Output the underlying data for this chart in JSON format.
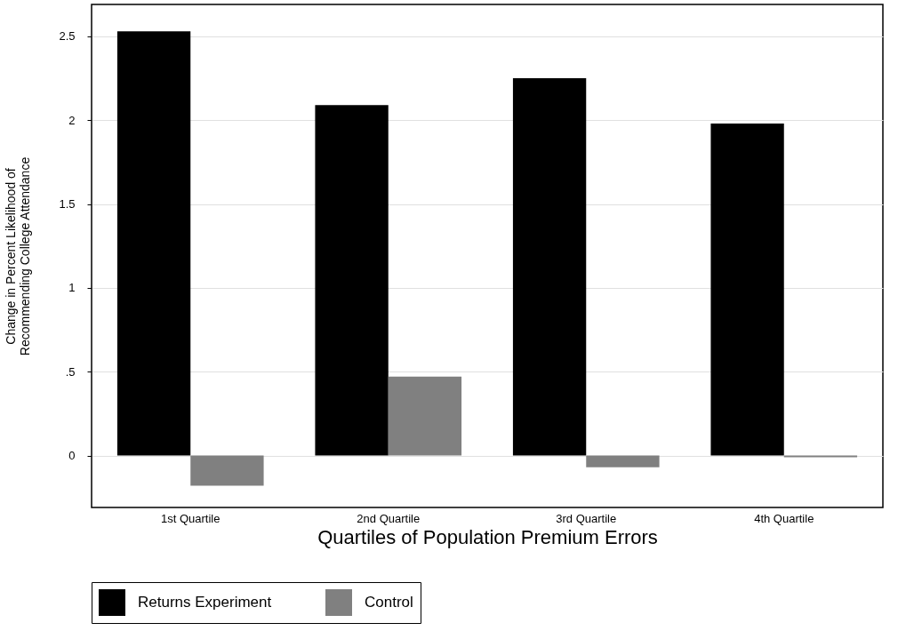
{
  "chart_data": {
    "type": "bar",
    "xlabel": "Quartiles of Population Premium Errors",
    "ylabel": "Change in Percent Likelihood of\nRecommending College Attendance",
    "categories": [
      "1st Quartile",
      "2nd Quartile",
      "3rd Quartile",
      "4th Quartile"
    ],
    "series": [
      {
        "name": "Returns Experiment",
        "color": "#000000",
        "values": [
          2.53,
          2.09,
          2.25,
          1.98
        ]
      },
      {
        "name": "Control",
        "color": "#808080",
        "values": [
          -0.18,
          0.47,
          -0.07,
          -0.01
        ]
      }
    ],
    "ylim": [
      -0.31,
      2.69
    ],
    "yticks": [
      0,
      {
        "value": 0.5,
        "label": ".5"
      },
      1,
      1.5,
      2,
      2.5
    ],
    "grid": "y",
    "legend": "bottom"
  }
}
